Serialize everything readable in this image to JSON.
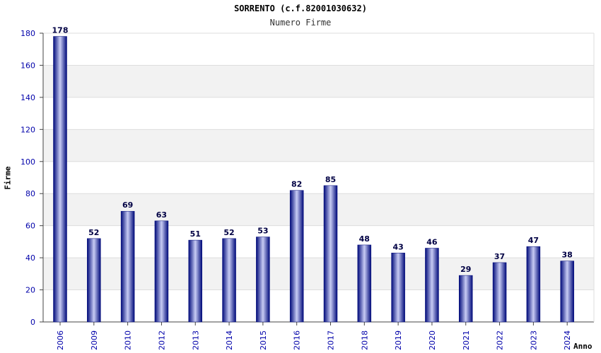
{
  "chart_data": {
    "type": "bar",
    "title": "SORRENTO (c.f.82001030632)",
    "subtitle": "Numero Firme",
    "xlabel": "Anno",
    "ylabel": "Firme",
    "categories": [
      "2006",
      "2009",
      "2010",
      "2012",
      "2013",
      "2014",
      "2015",
      "2016",
      "2017",
      "2018",
      "2019",
      "2020",
      "2021",
      "2022",
      "2023",
      "2024"
    ],
    "values": [
      178,
      52,
      69,
      63,
      51,
      52,
      53,
      82,
      85,
      48,
      43,
      46,
      29,
      37,
      47,
      38
    ],
    "ylim": [
      0,
      180
    ],
    "yticks": [
      0,
      20,
      40,
      60,
      80,
      100,
      120,
      140,
      160,
      180
    ],
    "grid": true,
    "legend": "none",
    "colors": {
      "bar_dark": "#000a7a",
      "bar_light": "#c8ccf4",
      "band_light": "#f2f2f2",
      "tick_text": "#0000aa",
      "value_text": "#000044"
    }
  }
}
